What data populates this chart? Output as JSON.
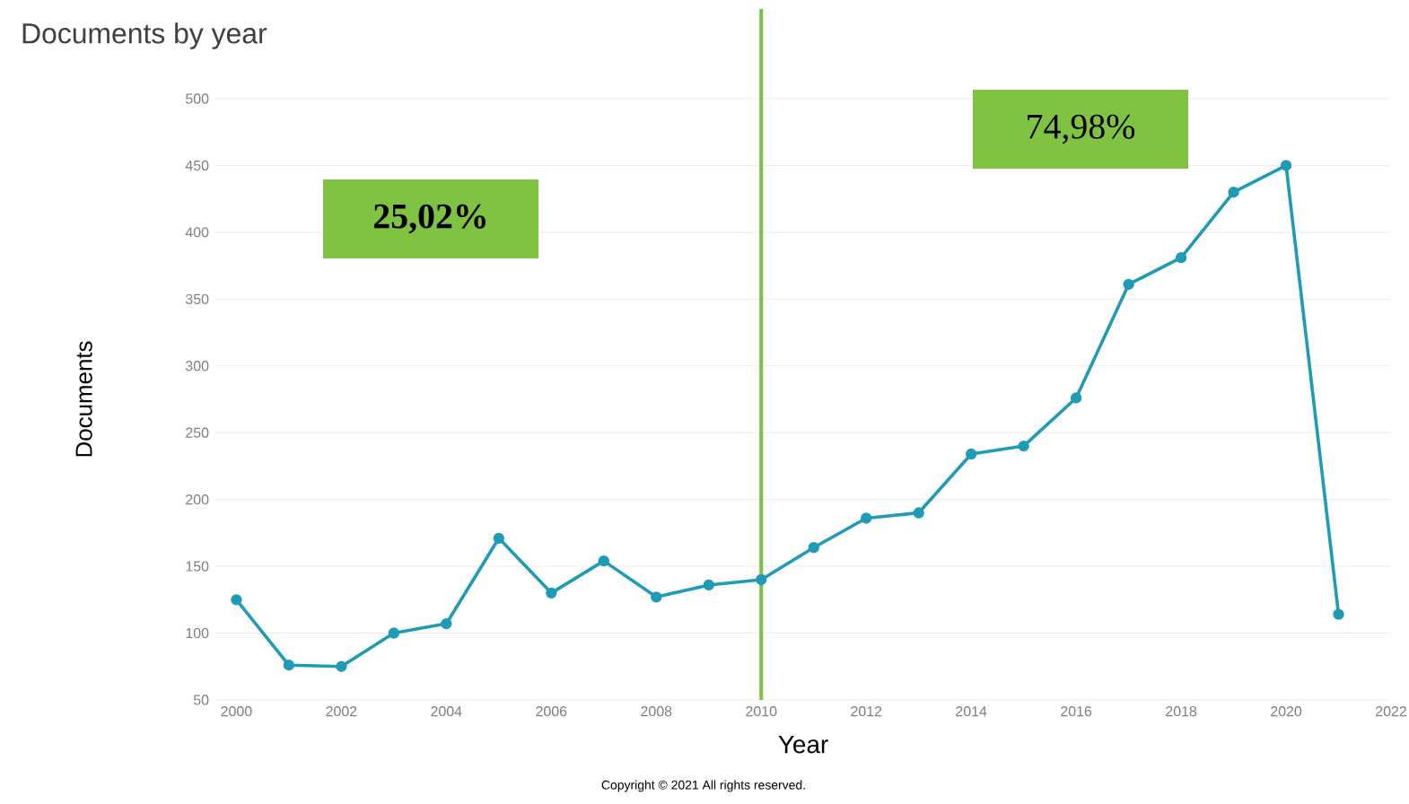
{
  "chart_data": {
    "type": "line",
    "title": "Documents by year",
    "xlabel": "Year",
    "ylabel": "Documents",
    "x": [
      2000,
      2001,
      2002,
      2003,
      2004,
      2005,
      2006,
      2007,
      2008,
      2009,
      2010,
      2011,
      2012,
      2013,
      2014,
      2015,
      2016,
      2017,
      2018,
      2019,
      2020,
      2021
    ],
    "series": [
      {
        "color": "#1f9bb5",
        "values": [
          125,
          76,
          75,
          100,
          107,
          171,
          130,
          154,
          127,
          136,
          140,
          164,
          186,
          190,
          234,
          240,
          276,
          361,
          381,
          430,
          450,
          114
        ]
      }
    ],
    "xlim": [
      1999.6,
      2022
    ],
    "xticks": [
      2000,
      2002,
      2004,
      2006,
      2008,
      2010,
      2012,
      2014,
      2016,
      2018,
      2020,
      2022
    ],
    "ylim": [
      50,
      500
    ],
    "yticks": [
      50,
      100,
      150,
      200,
      250,
      300,
      350,
      400,
      450,
      500
    ],
    "grid": "y",
    "marker": "circle",
    "line_style": "solid",
    "ref_lines": [
      {
        "axis": "x",
        "value": 2010,
        "color": "#7ac142"
      }
    ],
    "annotations": [
      "25,02%",
      "74,98%",
      "Copyright © 2021 All rights reserved."
    ]
  }
}
